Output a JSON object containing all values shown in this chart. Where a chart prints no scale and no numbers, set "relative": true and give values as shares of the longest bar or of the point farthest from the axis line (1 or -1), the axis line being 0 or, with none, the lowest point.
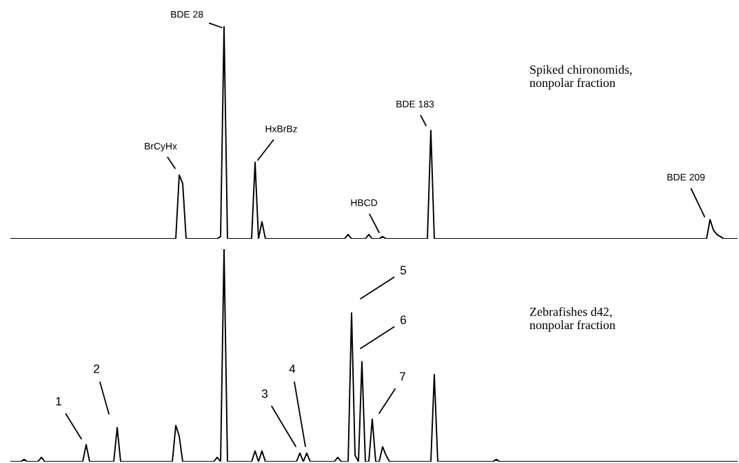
{
  "chart_data": [
    {
      "type": "line",
      "relative": true,
      "title": "Spiked chironomids,\nnonpolar fraction",
      "annotations": [
        "BDE 28",
        "BrCyHx",
        "HxBrBz",
        "HBCD",
        "BDE 183",
        "BDE 209"
      ],
      "categories": [
        null,
        null,
        null,
        null,
        null,
        null,
        null,
        null,
        null,
        null,
        null,
        null,
        null,
        null,
        null,
        null,
        null,
        null,
        null,
        null,
        null,
        null,
        null,
        null,
        null,
        null,
        null,
        null,
        null,
        null,
        null,
        null,
        null,
        null,
        null,
        null,
        null,
        null,
        null,
        null,
        null,
        null,
        null,
        null,
        null,
        null,
        null,
        null,
        null,
        null,
        null,
        null,
        null,
        null,
        null,
        null,
        null,
        null,
        null,
        null,
        null,
        null,
        null,
        null,
        null,
        null,
        null,
        null,
        null,
        null,
        null,
        null,
        null,
        null,
        null,
        null,
        null,
        null,
        null,
        null,
        null,
        null,
        null,
        null,
        null,
        null,
        null,
        null,
        null,
        null,
        null,
        null,
        null,
        null,
        null,
        null,
        null,
        null,
        null,
        null,
        null,
        null,
        null,
        null,
        null,
        null,
        null,
        null,
        null,
        null,
        null,
        null,
        null,
        null,
        null,
        null,
        null,
        null,
        null,
        null,
        null,
        null,
        null,
        null,
        null,
        null,
        null,
        null,
        null,
        null,
        null,
        null,
        null,
        null,
        null,
        null,
        null,
        null,
        null,
        null,
        null,
        null,
        null,
        null,
        null,
        null,
        null,
        null,
        null,
        null,
        null,
        null,
        null,
        null,
        null,
        null,
        null,
        null,
        null,
        null,
        null,
        null,
        null,
        null,
        null,
        null,
        null,
        null,
        null,
        null,
        null,
        null,
        null,
        null,
        null,
        null,
        null,
        null,
        null,
        null,
        null,
        null,
        null,
        null,
        null,
        null,
        null,
        null,
        null,
        null,
        null,
        null,
        null,
        null,
        null,
        null,
        null,
        null,
        null,
        null,
        null,
        null,
        null,
        null,
        null,
        null,
        null,
        null,
        null,
        null,
        null,
        null
      ],
      "series": [
        {
          "color": "#000000",
          "values": [
            0,
            0,
            0,
            0,
            0,
            0,
            0,
            0,
            0,
            0,
            0,
            0,
            0,
            0,
            0,
            0,
            0,
            0,
            0,
            0,
            0,
            0,
            0,
            0,
            0,
            0,
            0,
            0,
            0,
            0,
            0,
            0,
            0,
            0,
            0,
            0,
            0,
            0,
            0,
            0,
            0,
            0,
            0,
            0,
            0,
            0,
            0,
            0,
            0,
            0.3,
            0.26,
            0,
            0,
            0,
            0,
            0,
            0,
            0,
            0,
            0,
            0,
            0.01,
            1.0,
            0,
            0,
            0,
            0,
            0,
            0,
            0,
            0,
            0.36,
            0,
            0.08,
            0,
            0,
            0,
            0,
            0,
            0,
            0,
            0,
            0,
            0,
            0,
            0,
            0,
            0,
            0,
            0,
            0,
            0,
            0,
            0,
            0,
            0,
            0,
            0,
            0.02,
            0,
            0,
            0,
            0,
            0,
            0.02,
            0,
            0,
            0,
            0.01,
            0,
            0,
            0,
            0,
            0,
            0,
            0,
            0,
            0,
            0,
            0,
            0,
            0,
            0.51,
            0,
            0,
            0,
            0,
            0,
            0,
            0,
            0,
            0,
            0,
            0,
            0,
            0,
            0,
            0,
            0,
            0,
            0,
            0,
            0,
            0,
            0,
            0,
            0,
            0,
            0,
            0,
            0,
            0,
            0,
            0,
            0,
            0,
            0,
            0,
            0,
            0,
            0,
            0,
            0,
            0,
            0,
            0,
            0,
            0,
            0,
            0,
            0,
            0,
            0,
            0,
            0,
            0,
            0,
            0,
            0,
            0,
            0,
            0,
            0,
            0,
            0,
            0,
            0,
            0,
            0,
            0,
            0,
            0,
            0,
            0,
            0,
            0,
            0,
            0,
            0,
            0,
            0,
            0,
            0,
            0.09,
            0.04,
            0.02,
            0.01,
            0,
            0,
            0,
            0,
            0
          ]
        }
      ]
    },
    {
      "type": "line",
      "relative": true,
      "title": "Zebrafishes d42,\nnonpolar fraction",
      "annotations": [
        "1",
        "2",
        "3",
        "4",
        "5",
        "6",
        "7"
      ],
      "categories": [
        null,
        null,
        null,
        null,
        null,
        null,
        null,
        null,
        null,
        null,
        null,
        null,
        null,
        null,
        null,
        null,
        null,
        null,
        null,
        null,
        null,
        null,
        null,
        null,
        null,
        null,
        null,
        null,
        null,
        null,
        null,
        null,
        null,
        null,
        null,
        null,
        null,
        null,
        null,
        null,
        null,
        null,
        null,
        null,
        null,
        null,
        null,
        null,
        null,
        null,
        null,
        null,
        null,
        null,
        null,
        null,
        null,
        null,
        null,
        null,
        null,
        null,
        null,
        null,
        null,
        null,
        null,
        null,
        null,
        null,
        null,
        null,
        null,
        null,
        null,
        null,
        null,
        null,
        null,
        null,
        null,
        null,
        null,
        null,
        null,
        null,
        null,
        null,
        null,
        null,
        null,
        null,
        null,
        null,
        null,
        null,
        null,
        null,
        null,
        null,
        null,
        null,
        null,
        null,
        null,
        null,
        null,
        null,
        null,
        null,
        null,
        null,
        null,
        null,
        null,
        null,
        null,
        null,
        null,
        null,
        null,
        null,
        null,
        null,
        null,
        null,
        null,
        null,
        null,
        null,
        null,
        null,
        null,
        null,
        null,
        null,
        null,
        null,
        null,
        null,
        null,
        null,
        null,
        null,
        null,
        null,
        null,
        null,
        null,
        null,
        null,
        null,
        null,
        null,
        null,
        null,
        null,
        null,
        null,
        null,
        null,
        null,
        null,
        null,
        null,
        null,
        null,
        null,
        null,
        null,
        null,
        null,
        null,
        null,
        null,
        null,
        null,
        null,
        null,
        null,
        null,
        null,
        null,
        null,
        null,
        null,
        null,
        null,
        null,
        null,
        null,
        null,
        null,
        null,
        null,
        null,
        null,
        null,
        null,
        null,
        null,
        null,
        null,
        null,
        null,
        null,
        null,
        null,
        null,
        null,
        null,
        null
      ],
      "series": [
        {
          "color": "#000000",
          "values": [
            0,
            0,
            0,
            0,
            0.01,
            0,
            0,
            0,
            0,
            0.02,
            0,
            0,
            0,
            0,
            0,
            0,
            0,
            0,
            0,
            0,
            0,
            0,
            0.08,
            0,
            0,
            0,
            0,
            0,
            0,
            0,
            0,
            0.16,
            0,
            0,
            0,
            0,
            0,
            0,
            0,
            0,
            0,
            0,
            0,
            0,
            0,
            0,
            0,
            0,
            0.17,
            0.12,
            0,
            0,
            0,
            0,
            0,
            0,
            0,
            0,
            0,
            0,
            0.02,
            0,
            1.0,
            0,
            0,
            0,
            0,
            0,
            0,
            0,
            0,
            0.05,
            0,
            0.05,
            0,
            0,
            0,
            0,
            0,
            0,
            0,
            0,
            0,
            0,
            0.04,
            0,
            0.04,
            0,
            0,
            0,
            0,
            0,
            0,
            0,
            0,
            0.02,
            0,
            0,
            0,
            0.7,
            0.03,
            0,
            0.47,
            0,
            0,
            0.2,
            0,
            0,
            0.07,
            0.03,
            0,
            0,
            0,
            0,
            0,
            0,
            0,
            0,
            0,
            0,
            0,
            0,
            0,
            0.41,
            0,
            0,
            0,
            0,
            0,
            0,
            0,
            0,
            0,
            0,
            0,
            0,
            0,
            0,
            0,
            0,
            0,
            0.01,
            0,
            0,
            0,
            0,
            0,
            0,
            0,
            0,
            0,
            0,
            0,
            0,
            0,
            0,
            0,
            0,
            0,
            0,
            0,
            0,
            0,
            0,
            0,
            0,
            0,
            0,
            0,
            0,
            0,
            0,
            0,
            0,
            0,
            0,
            0,
            0,
            0,
            0,
            0,
            0,
            0,
            0,
            0,
            0,
            0,
            0,
            0,
            0,
            0,
            0,
            0,
            0,
            0,
            0,
            0,
            0,
            0,
            0,
            0,
            0,
            0,
            0,
            0,
            0,
            0,
            0,
            0,
            0,
            0,
            0
          ]
        }
      ]
    }
  ]
}
